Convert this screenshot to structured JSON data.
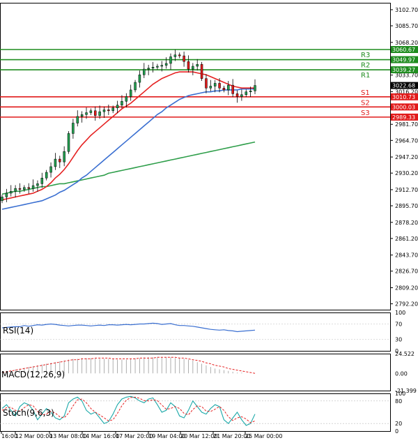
{
  "chart_data": [
    {
      "type": "candlestick",
      "price_axis": {
        "ylim": [
          2786.0,
          3110.0
        ],
        "ticks": [
          "3102.70",
          "3085.70",
          "3068.20",
          "3051.20",
          "3033.70",
          "3016.20",
          "2998.70",
          "2981.70",
          "2964.70",
          "2947.20",
          "2930.20",
          "2912.70",
          "2895.70",
          "2878.20",
          "2861.20",
          "2843.70",
          "2826.70",
          "2809.20",
          "2792.20"
        ]
      },
      "levels": [
        {
          "label": "R3",
          "value": 3060.67,
          "color": "#1e8c1e"
        },
        {
          "label": "R2",
          "value": 3049.97,
          "color": "#1e8c1e"
        },
        {
          "label": "R1",
          "value": 3039.27,
          "color": "#1e8c1e"
        },
        {
          "label": "S1",
          "value": 3010.73,
          "color": "#e11a1a"
        },
        {
          "label": "S2",
          "value": 3000.03,
          "color": "#e11a1a"
        },
        {
          "label": "S3",
          "value": 2989.33,
          "color": "#e11a1a"
        }
      ],
      "level_tags": [
        "3060.67",
        "3049.97",
        "3039.27",
        "3010.73",
        "3000.03",
        "2989.33"
      ],
      "last_price": "3022.68",
      "time_labels": [
        "16:00",
        "12 Mar 00:00",
        "13 Mar 08:00",
        "14 Mar 16:00",
        "17 Mar 20:00",
        "19 Mar 04:00",
        "20 Mar 12:00",
        "21 Mar 20:00",
        "25 Mar 00:00"
      ],
      "candles_close": [
        2905,
        2909,
        2911,
        2914,
        2913,
        2915,
        2914,
        2917,
        2919,
        2925,
        2931,
        2937,
        2945,
        2942,
        2953,
        2972,
        2983,
        2990,
        2992,
        2994,
        2996,
        2991,
        2995,
        2997,
        2996,
        2999,
        3002,
        3006,
        3011,
        3018,
        3026,
        3034,
        3040,
        3041,
        3042,
        3043,
        3044,
        3046,
        3053,
        3055,
        3054,
        3048,
        3040,
        3043,
        3045,
        3030,
        3020,
        3022,
        3025,
        3020,
        3018,
        3023,
        3014,
        3011,
        3013,
        3016,
        3017,
        3022.68
      ],
      "ema_short": [
        2902,
        2903,
        2904,
        2905,
        2906,
        2907,
        2908,
        2909,
        2911,
        2913,
        2916,
        2920,
        2925,
        2929,
        2934,
        2940,
        2947,
        2954,
        2960,
        2965,
        2970,
        2974,
        2978,
        2982,
        2986,
        2990,
        2994,
        2998,
        3001,
        3004,
        3008,
        3012,
        3016,
        3020,
        3024,
        3027,
        3030,
        3032,
        3034,
        3036,
        3037,
        3037,
        3037,
        3037,
        3036,
        3035,
        3034,
        3032,
        3030,
        3028,
        3026,
        3024,
        3022,
        3021,
        3020,
        3020,
        3020,
        3020
      ],
      "ema_mid": [
        2892,
        2893,
        2894,
        2895,
        2896,
        2897,
        2898,
        2899,
        2900,
        2901,
        2903,
        2905,
        2907,
        2910,
        2912,
        2915,
        2918,
        2921,
        2925,
        2928,
        2932,
        2936,
        2940,
        2944,
        2948,
        2952,
        2956,
        2960,
        2964,
        2968,
        2972,
        2976,
        2980,
        2984,
        2988,
        2992,
        2995,
        2999,
        3002,
        3005,
        3008,
        3010,
        3012,
        3013,
        3014,
        3015,
        3016,
        3016,
        3017,
        3017,
        3018,
        3018,
        3018,
        3018,
        3019,
        3019,
        3019,
        3019
      ],
      "ema_long": [
        2908,
        2909,
        2910,
        2911,
        2911,
        2912,
        2913,
        2914,
        2915,
        2916,
        2916,
        2917,
        2918,
        2919,
        2919,
        2920,
        2921,
        2922,
        2923,
        2924,
        2925,
        2926,
        2927,
        2928,
        2930,
        2931,
        2932,
        2933,
        2934,
        2935,
        2936,
        2937,
        2938,
        2939,
        2940,
        2941,
        2942,
        2943,
        2944,
        2945,
        2946,
        2947,
        2948,
        2949,
        2950,
        2951,
        2952,
        2953,
        2954,
        2955,
        2956,
        2957,
        2958,
        2959,
        2960,
        2961,
        2962,
        2963
      ]
    },
    {
      "type": "line",
      "label": "RSI(14)",
      "ylim": [
        0,
        100
      ],
      "ticks": [
        "100",
        "70",
        "30",
        "0"
      ],
      "values": [
        60,
        61,
        62,
        63,
        63,
        66,
        64,
        66,
        68,
        67,
        69,
        70,
        69,
        67,
        66,
        65,
        66,
        67,
        67,
        66,
        65,
        66,
        67,
        66,
        68,
        68,
        67,
        68,
        69,
        68,
        69,
        70,
        70,
        71,
        72,
        71,
        69,
        70,
        71,
        68,
        66,
        66,
        65,
        64,
        62,
        60,
        58,
        56,
        55,
        54,
        55,
        53,
        52,
        50,
        51,
        52,
        53,
        54
      ]
    },
    {
      "type": "bar",
      "label": "MACD(12,26,9)",
      "ylim": [
        -21.399,
        24.522
      ],
      "ticks": [
        "24.522",
        "0.00",
        "-21.399"
      ],
      "histogram": [
        2,
        3,
        4,
        5,
        6,
        7,
        8,
        9,
        10,
        11,
        12,
        13,
        14,
        15,
        16,
        17,
        18,
        18,
        19,
        19,
        19,
        19,
        18,
        18,
        18,
        18,
        17,
        17,
        17,
        18,
        19,
        19,
        20,
        20,
        20,
        20,
        20,
        20,
        20,
        19,
        19,
        18,
        17,
        16,
        14,
        12,
        10,
        8,
        6,
        5,
        4,
        3,
        2,
        1,
        1,
        0,
        0,
        0
      ],
      "signal": [
        1,
        2,
        3,
        4,
        5,
        6,
        7,
        8,
        9,
        10,
        11,
        12,
        13,
        14,
        15,
        16,
        17,
        17,
        18,
        18,
        18,
        19,
        19,
        19,
        19,
        18,
        18,
        18,
        18,
        18,
        18,
        19,
        19,
        19,
        19,
        20,
        20,
        20,
        20,
        20,
        19,
        19,
        18,
        17,
        16,
        15,
        13,
        12,
        10,
        9,
        8,
        6,
        5,
        4,
        3,
        2,
        1,
        0
      ]
    },
    {
      "type": "line",
      "label": "Stoch(9,6,3)",
      "ylim": [
        0,
        100
      ],
      "ticks": [
        "100",
        "80",
        "20",
        "0"
      ],
      "k": [
        60,
        70,
        55,
        40,
        65,
        75,
        70,
        55,
        30,
        45,
        60,
        50,
        35,
        30,
        40,
        75,
        85,
        90,
        80,
        55,
        45,
        50,
        35,
        20,
        25,
        45,
        70,
        85,
        90,
        92,
        88,
        80,
        75,
        85,
        88,
        70,
        50,
        55,
        75,
        65,
        40,
        35,
        55,
        80,
        65,
        50,
        45,
        60,
        70,
        65,
        30,
        20,
        35,
        50,
        30,
        15,
        20,
        45
      ],
      "d": [
        55,
        62,
        63,
        55,
        53,
        62,
        70,
        67,
        52,
        43,
        45,
        52,
        48,
        38,
        35,
        48,
        67,
        83,
        85,
        75,
        60,
        50,
        43,
        35,
        27,
        30,
        47,
        67,
        82,
        89,
        90,
        87,
        81,
        80,
        83,
        81,
        69,
        58,
        60,
        65,
        60,
        47,
        43,
        57,
        67,
        65,
        53,
        52,
        58,
        65,
        55,
        38,
        28,
        35,
        38,
        32,
        22,
        27
      ]
    }
  ]
}
